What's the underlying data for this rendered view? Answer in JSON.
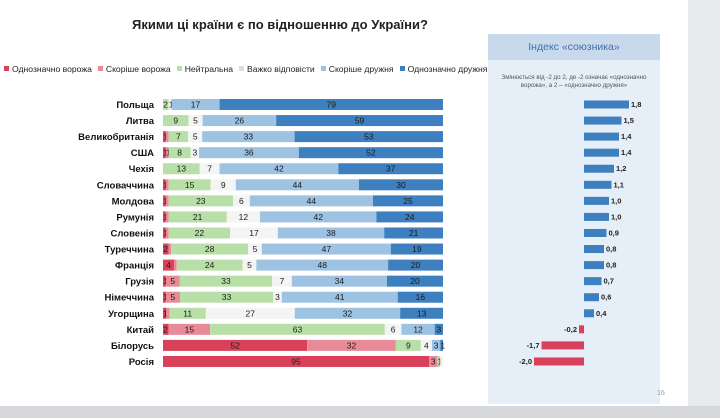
{
  "title": "Якими ці країни є по відношенню до України?",
  "page_number": "16",
  "index_panel": {
    "title": "Індекс «союзника»",
    "note": "Змінюється від -2 до 2, де -2 означає «однозначно ворожа», а 2 – «однозначно дружня»"
  },
  "colors": {
    "definitely_hostile": "#d9415a",
    "rather_hostile": "#e88a98",
    "neutral": "#b9dfa8",
    "hard_to_say": "#f4f4f4",
    "rather_friendly": "#9ec2e2",
    "definitely_friendly": "#3d7fbf",
    "index_positive": "#3d7fbf",
    "index_negative": "#d9415a"
  },
  "chart_data": [
    {
      "type": "bar",
      "orientation": "horizontal",
      "stacked": true,
      "title": "Якими ці країни є по відношенню до України?",
      "legend_position": "top",
      "xlim": [
        0,
        100
      ],
      "categories": [
        "Польща",
        "Литва",
        "Великобританія",
        "США",
        "Чехія",
        "Словаччина",
        "Молдова",
        "Румунія",
        "Словенія",
        "Туреччина",
        "Франція",
        "Грузія",
        "Німеччина",
        "Угорщина",
        "Китай",
        "Білорусь",
        "Росія"
      ],
      "series": [
        {
          "name": "Однозначно ворожа",
          "key": "definitely_hostile",
          "values": [
            0,
            0,
            1,
            1,
            0,
            1,
            1,
            1,
            1,
            2,
            4,
            1,
            1,
            1,
            2,
            52,
            95
          ],
          "labels": [
            "",
            "",
            "1",
            "1",
            "",
            "1",
            "1",
            "1",
            "1",
            "2",
            "4",
            "1",
            "1",
            "1",
            "2",
            "52",
            "95"
          ]
        },
        {
          "name": "Скоріше ворожа",
          "key": "rather_hostile",
          "values": [
            0,
            0,
            1,
            1,
            0,
            1,
            1,
            1,
            1,
            1,
            1,
            5,
            5,
            1,
            15,
            32,
            3
          ],
          "labels": [
            "",
            "",
            "",
            "1",
            "",
            "",
            "",
            "",
            "",
            "",
            "",
            "5",
            "5",
            "",
            "15",
            "32",
            "3"
          ]
        },
        {
          "name": "Нейтральна",
          "key": "neutral",
          "values": [
            2,
            9,
            7,
            8,
            13,
            15,
            23,
            21,
            22,
            28,
            24,
            33,
            33,
            11,
            63,
            9,
            1
          ],
          "labels": [
            "2",
            "9",
            "7",
            "8",
            "13",
            "15",
            "23",
            "21",
            "22",
            "28",
            "24",
            "33",
            "33",
            "11",
            "63",
            "9",
            "1"
          ]
        },
        {
          "name": "Важко відповісти",
          "key": "hard_to_say",
          "values": [
            1,
            5,
            5,
            3,
            7,
            9,
            6,
            12,
            17,
            5,
            5,
            7,
            3,
            27,
            6,
            4,
            1
          ],
          "labels": [
            "1",
            "5",
            "5",
            "3",
            "7",
            "9",
            "6",
            "12",
            "17",
            "5",
            "5",
            "7",
            "3",
            "27",
            "6",
            "4",
            ""
          ]
        },
        {
          "name": "Скоріше дружня",
          "key": "rather_friendly",
          "values": [
            17,
            26,
            33,
            36,
            42,
            44,
            44,
            42,
            38,
            47,
            48,
            34,
            41,
            32,
            12,
            3,
            0
          ],
          "labels": [
            "17",
            "26",
            "33",
            "36",
            "42",
            "44",
            "44",
            "42",
            "38",
            "47",
            "48",
            "34",
            "41",
            "32",
            "12",
            "3",
            ""
          ]
        },
        {
          "name": "Однозначно дружня",
          "key": "definitely_friendly",
          "values": [
            79,
            59,
            53,
            52,
            37,
            30,
            25,
            24,
            21,
            19,
            20,
            20,
            16,
            13,
            3,
            1,
            0
          ],
          "labels": [
            "79",
            "59",
            "53",
            "52",
            "37",
            "30",
            "25",
            "24",
            "21",
            "19",
            "20",
            "20",
            "16",
            "13",
            "3",
            "1",
            ""
          ]
        }
      ]
    },
    {
      "type": "bar",
      "orientation": "horizontal",
      "title": "Індекс «союзника»",
      "xlim": [
        -2,
        2
      ],
      "categories": [
        "Польща",
        "Литва",
        "Великобританія",
        "США",
        "Чехія",
        "Словаччина",
        "Молдова",
        "Румунія",
        "Словенія",
        "Туреччина",
        "Франція",
        "Грузія",
        "Німеччина",
        "Угорщина",
        "Китай",
        "Білорусь",
        "Росія"
      ],
      "values": [
        1.8,
        1.5,
        1.4,
        1.4,
        1.2,
        1.1,
        1.0,
        1.0,
        0.9,
        0.8,
        0.8,
        0.7,
        0.6,
        0.4,
        -0.2,
        -1.7,
        -2.0
      ],
      "labels": [
        "1,8",
        "1,5",
        "1,4",
        "1,4",
        "1,2",
        "1,1",
        "1,0",
        "1,0",
        "0,9",
        "0,8",
        "0,8",
        "0,7",
        "0,6",
        "0,4",
        "-0,2",
        "-1,7",
        "-2,0"
      ]
    }
  ]
}
